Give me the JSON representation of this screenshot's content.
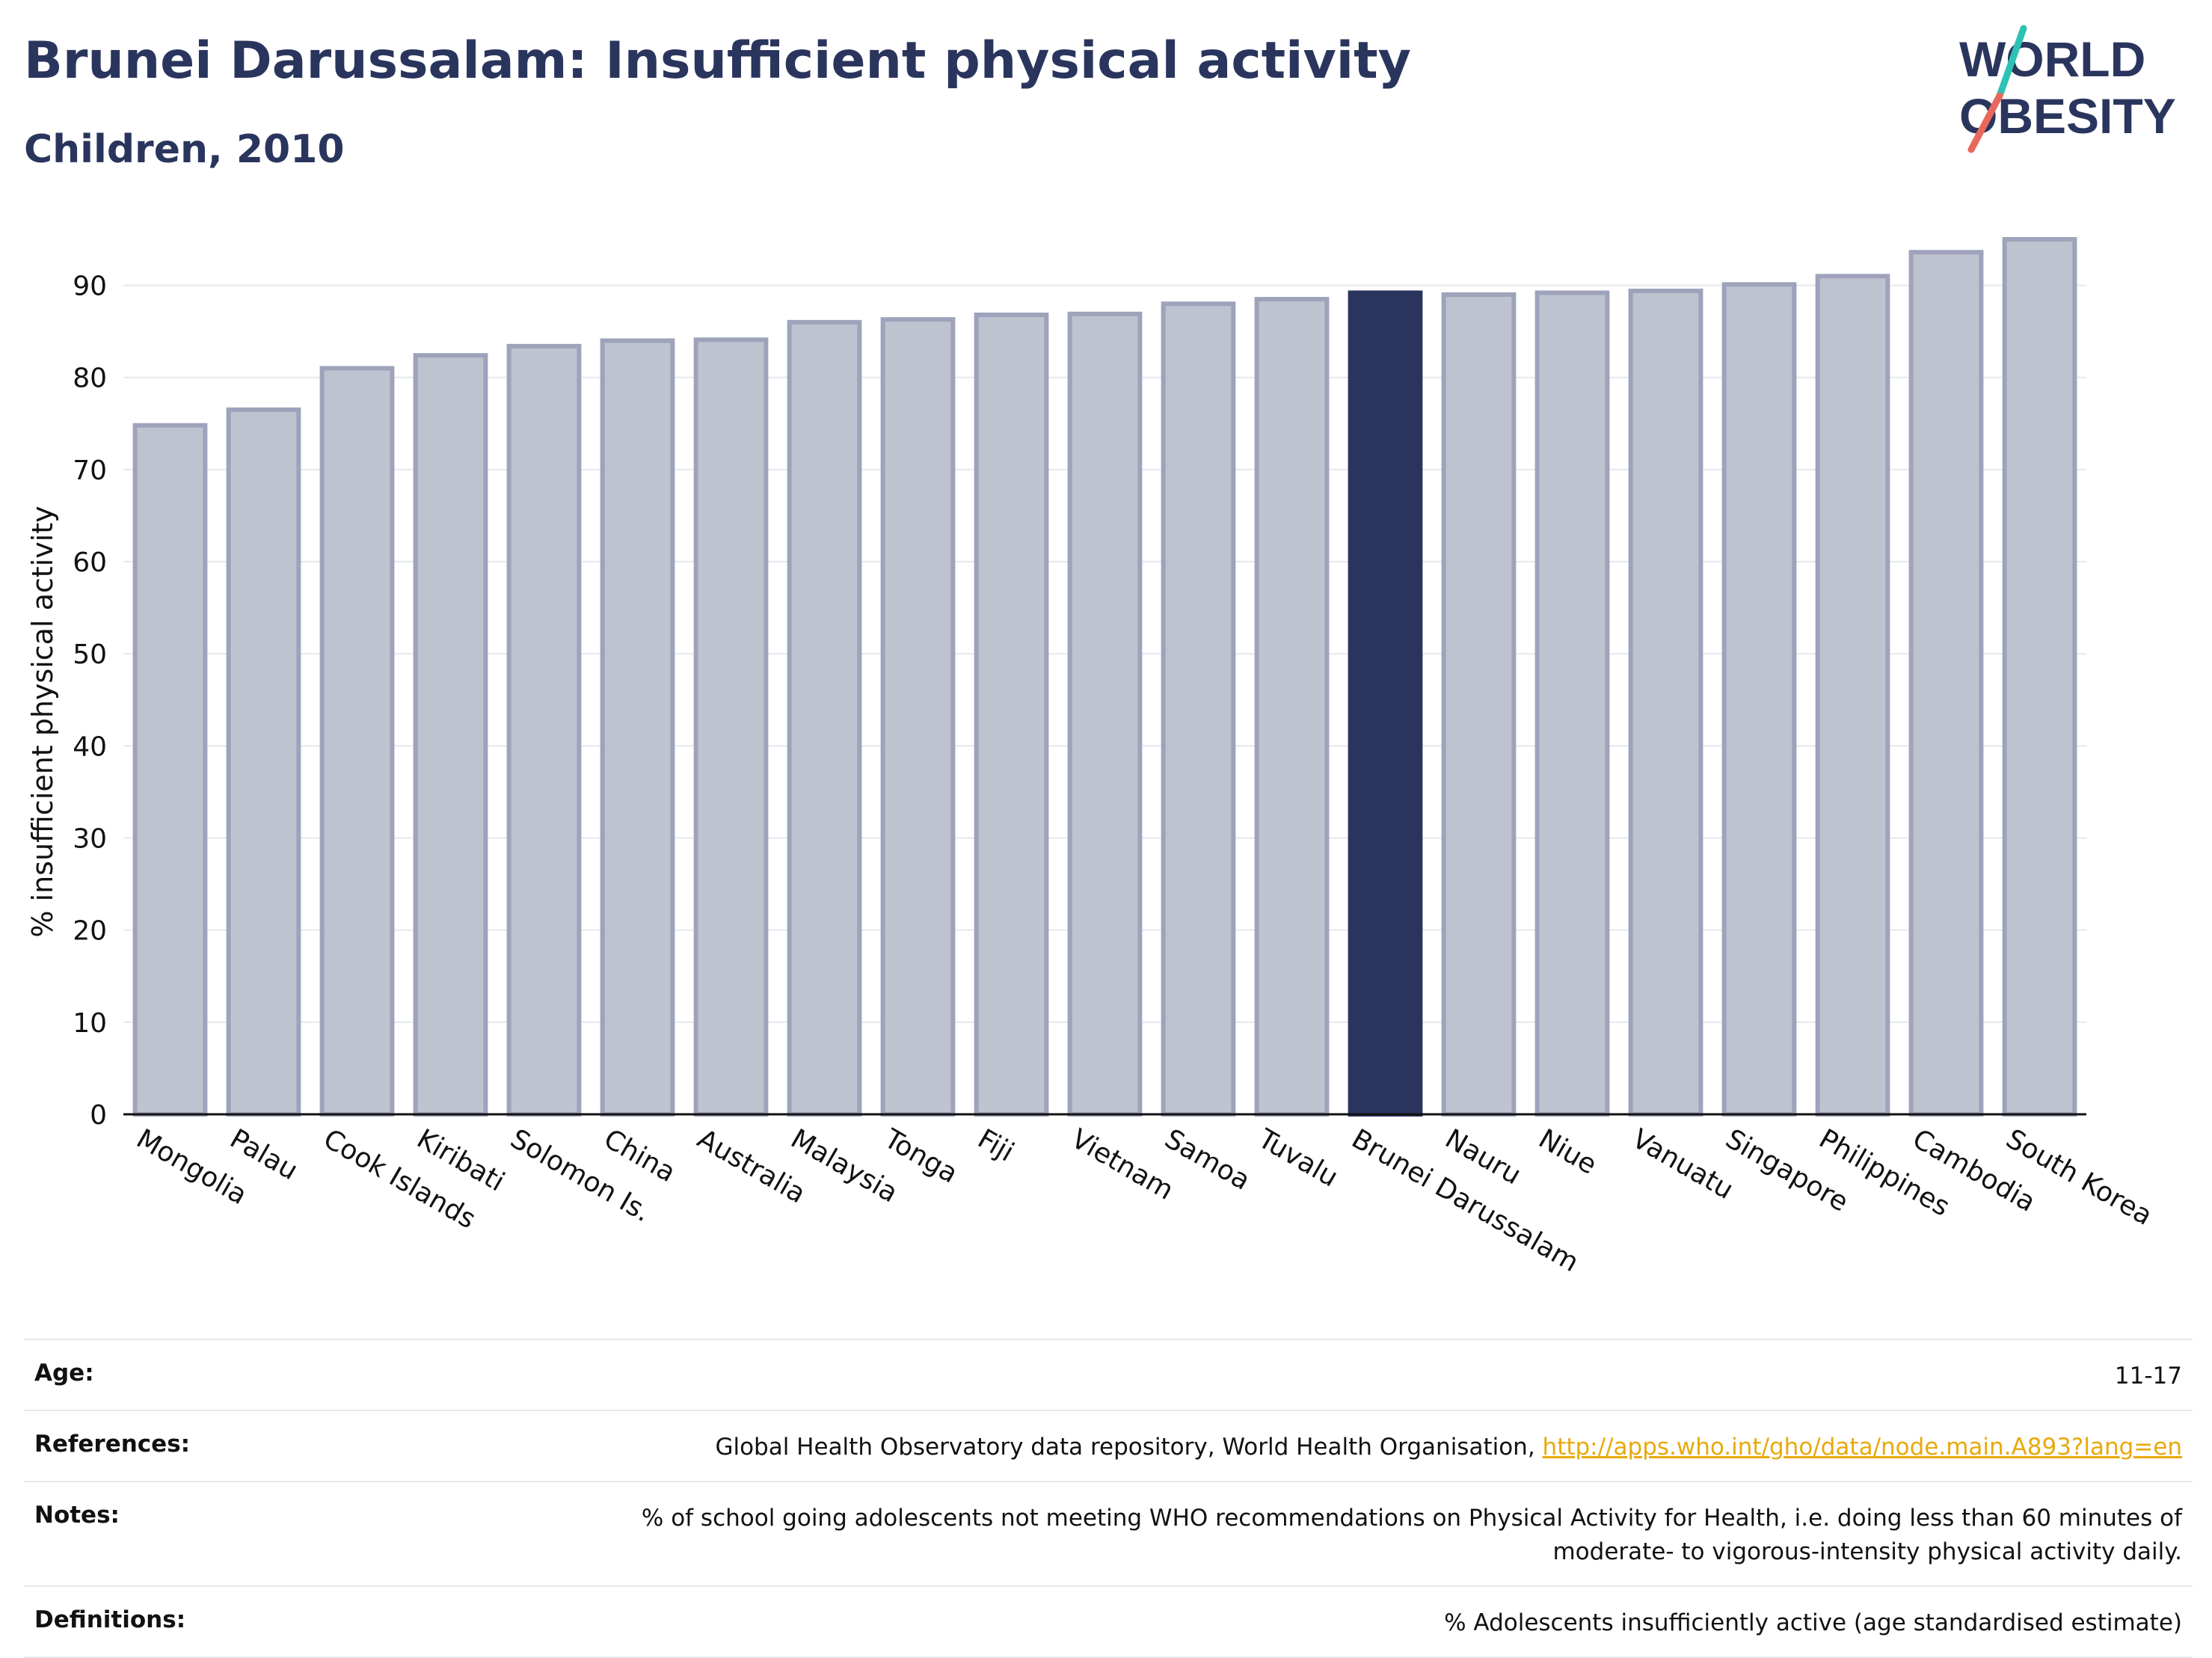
{
  "header": {
    "title": "Brunei Darussalam: Insufficient physical activity",
    "subtitle": "Children, 2010"
  },
  "logo": {
    "line1": "WORLD",
    "line2": "OBESITY"
  },
  "chart_data": {
    "type": "bar",
    "ylabel": "% insufficient physical activity",
    "xlabel": "",
    "ylim": [
      0,
      95
    ],
    "yticks": [
      0,
      10,
      20,
      30,
      40,
      50,
      60,
      70,
      80,
      90
    ],
    "grid": true,
    "highlight": "Brunei Darussalam",
    "categories": [
      "Mongolia",
      "Palau",
      "Cook Islands",
      "Kiribati",
      "Solomon Is.",
      "China",
      "Australia",
      "Malaysia",
      "Tonga",
      "Fiji",
      "Vietnam",
      "Samoa",
      "Tuvalu",
      "Brunei Darussalam",
      "Nauru",
      "Niue",
      "Vanuatu",
      "Singapore",
      "Philippines",
      "Cambodia",
      "South Korea"
    ],
    "values": [
      74.8,
      76.5,
      81.0,
      82.4,
      83.4,
      84.0,
      84.1,
      86.0,
      86.3,
      86.8,
      86.9,
      88.0,
      88.5,
      89.2,
      89.0,
      89.2,
      89.4,
      90.1,
      91.0,
      93.6,
      95.0
    ],
    "colors": {
      "bar": "#bfc2cf",
      "bar_border": "#9ea3bb",
      "highlight": "#2a355e",
      "grid": "#e6e8ee"
    }
  },
  "meta": {
    "age_label": "Age:",
    "age_value": "11-17",
    "references_label": "References:",
    "references_text": "Global Health Observatory data repository, World Health Organisation, ",
    "references_link": "http://apps.who.int/gho/data/node.main.A893?lang=en",
    "notes_label": "Notes:",
    "notes_line1": "% of school going adolescents not meeting WHO recommendations on Physical Activity for Health, i.e. doing less than 60 minutes of",
    "notes_line2": "moderate- to vigorous-intensity physical activity daily.",
    "definitions_label": "Definitions:",
    "definitions_value": "% Adolescents insufficiently active (age standardised estimate)"
  }
}
